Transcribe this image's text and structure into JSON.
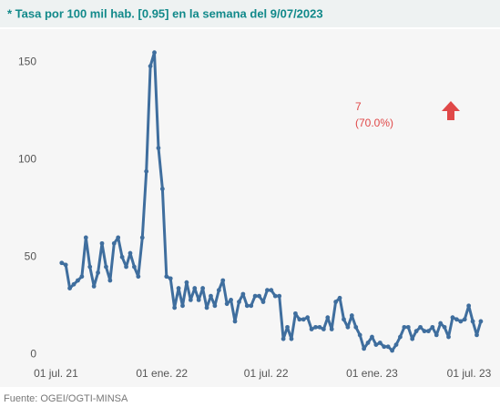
{
  "chart_data": {
    "type": "line",
    "title": "* Tasa por 100 mil hab. [0.95] en la semana del 9/07/2023",
    "source": "Fuente: OGEI/OGTI-MINSA",
    "annotation": {
      "lines": [
        "7",
        "(70.0%)"
      ],
      "color": "#e04848"
    },
    "x": [
      "2021-07-11",
      "2021-07-18",
      "2021-07-25",
      "2021-08-01",
      "2021-08-08",
      "2021-08-15",
      "2021-08-22",
      "2021-08-29",
      "2021-09-05",
      "2021-09-12",
      "2021-09-19",
      "2021-09-26",
      "2021-10-03",
      "2021-10-10",
      "2021-10-17",
      "2021-10-24",
      "2021-10-31",
      "2021-11-07",
      "2021-11-14",
      "2021-11-21",
      "2021-11-28",
      "2021-12-05",
      "2021-12-12",
      "2021-12-19",
      "2021-12-26",
      "2022-01-02",
      "2022-01-09",
      "2022-01-16",
      "2022-01-23",
      "2022-01-30",
      "2022-02-06",
      "2022-02-13",
      "2022-02-20",
      "2022-02-27",
      "2022-03-06",
      "2022-03-13",
      "2022-03-20",
      "2022-03-27",
      "2022-04-03",
      "2022-04-10",
      "2022-04-17",
      "2022-04-24",
      "2022-05-01",
      "2022-05-08",
      "2022-05-15",
      "2022-05-22",
      "2022-05-29",
      "2022-06-05",
      "2022-06-12",
      "2022-06-19",
      "2022-06-26",
      "2022-07-03",
      "2022-07-10",
      "2022-07-17",
      "2022-07-24",
      "2022-07-31",
      "2022-08-07",
      "2022-08-14",
      "2022-08-21",
      "2022-08-28",
      "2022-09-04",
      "2022-09-11",
      "2022-09-18",
      "2022-09-25",
      "2022-10-02",
      "2022-10-09",
      "2022-10-16",
      "2022-10-23",
      "2022-10-30",
      "2022-11-06",
      "2022-11-13",
      "2022-11-20",
      "2022-11-27",
      "2022-12-04",
      "2022-12-11",
      "2022-12-18",
      "2022-12-25",
      "2023-01-01",
      "2023-01-08",
      "2023-01-15",
      "2023-01-22",
      "2023-01-29",
      "2023-02-05",
      "2023-02-12",
      "2023-02-19",
      "2023-02-26",
      "2023-03-05",
      "2023-03-12",
      "2023-03-19",
      "2023-03-26",
      "2023-04-02",
      "2023-04-09",
      "2023-04-16",
      "2023-04-23",
      "2023-04-30",
      "2023-05-07",
      "2023-05-14",
      "2023-05-21",
      "2023-05-28",
      "2023-06-04",
      "2023-06-11",
      "2023-06-18",
      "2023-06-25",
      "2023-07-02",
      "2023-07-09"
    ],
    "series": [
      {
        "name": "Tasa",
        "color": "#3f6e9e",
        "values": [
          47,
          46,
          34,
          36,
          38,
          40,
          60,
          45,
          35,
          42,
          57,
          45,
          38,
          57,
          60,
          50,
          45,
          52,
          45,
          40,
          60,
          94,
          148,
          155,
          106,
          85,
          40,
          39,
          24,
          34,
          25,
          37,
          28,
          34,
          28,
          34,
          24,
          30,
          25,
          33,
          38,
          26,
          28,
          17,
          27,
          31,
          25,
          25,
          30,
          30,
          27,
          33,
          33,
          30,
          30,
          8,
          14,
          8,
          21,
          18,
          18,
          19,
          13,
          14,
          14,
          13,
          19,
          13,
          27,
          29,
          18,
          14,
          20,
          14,
          10,
          3,
          6,
          9,
          5,
          6,
          4,
          4,
          2,
          5,
          9,
          14,
          14,
          8,
          12,
          14,
          12,
          12,
          14,
          10,
          16,
          14,
          9,
          19,
          18,
          17,
          18,
          25,
          17,
          10,
          17
        ]
      }
    ],
    "xlim": [
      "2021-06-05",
      "2023-08-05"
    ],
    "xticks": [
      {
        "value": "2021-07-01",
        "label": "01 jul. 21"
      },
      {
        "value": "2022-01-01",
        "label": "01 ene. 22"
      },
      {
        "value": "2022-07-01",
        "label": "01 jul. 22"
      },
      {
        "value": "2023-01-01",
        "label": "01 ene. 23"
      },
      {
        "value": "2023-07-01",
        "label": "01 jul. 23"
      }
    ],
    "ylim": [
      -5,
      160
    ],
    "yticks": [
      0,
      50,
      100,
      150
    ],
    "grid": false
  }
}
